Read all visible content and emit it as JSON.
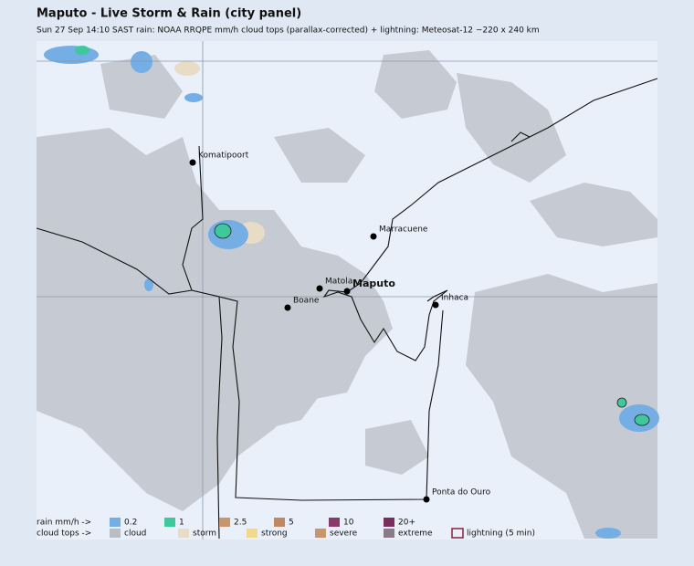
{
  "header": {
    "title": "Maputo - Live Storm & Rain (city panel)",
    "subtitle": "Sun 27 Sep 14:10 SAST   rain: NOAA RRQPE mm/h   cloud tops (parallax-corrected) + lightning: Meteosat-12   ~220 x 240 km"
  },
  "places": [
    {
      "label": "Komatipoort"
    },
    {
      "label": "Marracuene"
    },
    {
      "label": "Matola"
    },
    {
      "label": "Maputo"
    },
    {
      "label": "Boane"
    },
    {
      "label": "Inhaca"
    },
    {
      "label": "Ponta do Ouro"
    }
  ],
  "legend": {
    "rain_label": "rain mm/h ->",
    "rain": [
      {
        "label": "0.2",
        "color": "#74aee4"
      },
      {
        "label": "1",
        "color": "#3ec89c"
      },
      {
        "label": "2.5",
        "color": "#c8966e"
      },
      {
        "label": "5",
        "color": "#c08860"
      },
      {
        "label": "10",
        "color": "#8a3a6a"
      },
      {
        "label": "20+",
        "color": "#7a2c5c"
      }
    ],
    "cloud_label": "cloud tops ->",
    "cloud": [
      {
        "label": "cloud",
        "color": "#b8bdc6"
      },
      {
        "label": "storm",
        "color": "#e8dcc6"
      },
      {
        "label": "strong",
        "color": "#f2d88c"
      },
      {
        "label": "severe",
        "color": "#c8966e"
      },
      {
        "label": "extreme",
        "color": "#8a7c86"
      },
      {
        "label": "lightning (5 min)",
        "color": "#8b2040",
        "outline": true
      }
    ]
  }
}
